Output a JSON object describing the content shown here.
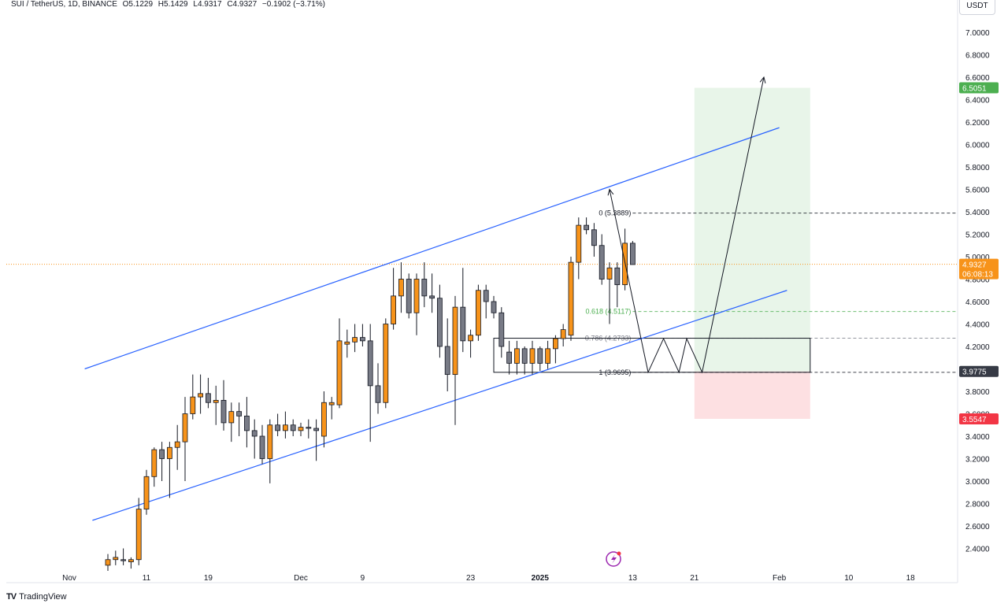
{
  "header": {
    "symbol": "SUI / TetherUS, 1D, BINANCE",
    "open": "O5.1229",
    "high": "H5.1429",
    "low": "L4.9317",
    "close": "C4.9327",
    "change": "−0.1902 (−3.71%)"
  },
  "currency_button": "USDT",
  "brand": "TradingView",
  "colors": {
    "up": "#f7931a",
    "down": "#787b86",
    "channel": "#2962ff",
    "target_zone": "#e8f5e9",
    "stop_zone": "#fde0e2",
    "target_tag": "#4caf50",
    "stop_tag": "#f23645",
    "price_tag": "#f7931a",
    "entry_tag": "#363a45"
  },
  "chart_data": {
    "type": "candlestick",
    "y_axis": {
      "min": 2.3,
      "max": 7.2,
      "ticks": [
        "2.4000",
        "2.6000",
        "2.8000",
        "3.0000",
        "3.2000",
        "3.4000",
        "3.6000",
        "3.8000",
        "4.0000",
        "4.2000",
        "4.4000",
        "4.6000",
        "4.8000",
        "5.0000",
        "5.2000",
        "5.4000",
        "5.6000",
        "5.8000",
        "6.0000",
        "6.2000",
        "6.4000",
        "6.6000",
        "6.8000",
        "7.0000"
      ]
    },
    "x_axis": {
      "ticks": [
        {
          "label": "Nov",
          "day": 0
        },
        {
          "label": "11",
          "day": 10
        },
        {
          "label": "19",
          "day": 18
        },
        {
          "label": "Dec",
          "day": 30
        },
        {
          "label": "9",
          "day": 38
        },
        {
          "label": "23",
          "day": 52
        },
        {
          "label": "2025",
          "day": 61
        },
        {
          "label": "13",
          "day": 73
        },
        {
          "label": "21",
          "day": 81
        },
        {
          "label": "Feb",
          "day": 92
        },
        {
          "label": "10",
          "day": 101
        },
        {
          "label": "18",
          "day": 109
        }
      ]
    },
    "candles": [
      {
        "day": 5,
        "o": 2.25,
        "h": 2.35,
        "l": 2.2,
        "c": 2.3
      },
      {
        "day": 6,
        "o": 2.3,
        "h": 2.38,
        "l": 2.25,
        "c": 2.32
      },
      {
        "day": 7,
        "o": 2.3,
        "h": 2.4,
        "l": 2.25,
        "c": 2.29
      },
      {
        "day": 8,
        "o": 2.28,
        "h": 2.32,
        "l": 2.22,
        "c": 2.3
      },
      {
        "day": 9,
        "o": 2.3,
        "h": 2.85,
        "l": 2.25,
        "c": 2.75
      },
      {
        "day": 10,
        "o": 2.75,
        "h": 3.1,
        "l": 2.7,
        "c": 3.04
      },
      {
        "day": 11,
        "o": 3.04,
        "h": 3.3,
        "l": 2.95,
        "c": 3.28
      },
      {
        "day": 12,
        "o": 3.28,
        "h": 3.35,
        "l": 3.0,
        "c": 3.2
      },
      {
        "day": 13,
        "o": 3.2,
        "h": 3.35,
        "l": 2.85,
        "c": 3.3
      },
      {
        "day": 14,
        "o": 3.3,
        "h": 3.5,
        "l": 3.1,
        "c": 3.35
      },
      {
        "day": 15,
        "o": 3.35,
        "h": 3.75,
        "l": 3.0,
        "c": 3.6
      },
      {
        "day": 16,
        "o": 3.6,
        "h": 3.95,
        "l": 3.55,
        "c": 3.75
      },
      {
        "day": 17,
        "o": 3.75,
        "h": 3.95,
        "l": 3.6,
        "c": 3.78
      },
      {
        "day": 18,
        "o": 3.78,
        "h": 3.92,
        "l": 3.65,
        "c": 3.7
      },
      {
        "day": 19,
        "o": 3.7,
        "h": 3.85,
        "l": 3.5,
        "c": 3.72
      },
      {
        "day": 20,
        "o": 3.72,
        "h": 3.9,
        "l": 3.45,
        "c": 3.52
      },
      {
        "day": 21,
        "o": 3.52,
        "h": 3.7,
        "l": 3.35,
        "c": 3.62
      },
      {
        "day": 22,
        "o": 3.62,
        "h": 3.7,
        "l": 3.4,
        "c": 3.58
      },
      {
        "day": 23,
        "o": 3.58,
        "h": 3.75,
        "l": 3.3,
        "c": 3.45
      },
      {
        "day": 24,
        "o": 3.45,
        "h": 3.55,
        "l": 3.2,
        "c": 3.4
      },
      {
        "day": 25,
        "o": 3.4,
        "h": 3.5,
        "l": 3.15,
        "c": 3.2
      },
      {
        "day": 26,
        "o": 3.2,
        "h": 3.55,
        "l": 2.98,
        "c": 3.5
      },
      {
        "day": 27,
        "o": 3.5,
        "h": 3.6,
        "l": 3.4,
        "c": 3.45
      },
      {
        "day": 28,
        "o": 3.45,
        "h": 3.62,
        "l": 3.38,
        "c": 3.5
      },
      {
        "day": 29,
        "o": 3.5,
        "h": 3.55,
        "l": 3.4,
        "c": 3.45
      },
      {
        "day": 30,
        "o": 3.45,
        "h": 3.52,
        "l": 3.4,
        "c": 3.48
      },
      {
        "day": 31,
        "o": 3.48,
        "h": 3.55,
        "l": 3.38,
        "c": 3.47
      },
      {
        "day": 32,
        "o": 3.47,
        "h": 3.55,
        "l": 3.18,
        "c": 3.45
      },
      {
        "day": 33,
        "o": 3.4,
        "h": 3.8,
        "l": 3.3,
        "c": 3.7
      },
      {
        "day": 34,
        "o": 3.68,
        "h": 3.75,
        "l": 3.55,
        "c": 3.7
      },
      {
        "day": 35,
        "o": 3.68,
        "h": 4.45,
        "l": 3.65,
        "c": 4.25
      },
      {
        "day": 36,
        "o": 4.22,
        "h": 4.35,
        "l": 4.1,
        "c": 4.24
      },
      {
        "day": 37,
        "o": 4.24,
        "h": 4.4,
        "l": 4.15,
        "c": 4.28
      },
      {
        "day": 38,
        "o": 4.28,
        "h": 4.4,
        "l": 4.2,
        "c": 4.25
      },
      {
        "day": 39,
        "o": 4.25,
        "h": 4.4,
        "l": 3.35,
        "c": 3.85
      },
      {
        "day": 40,
        "o": 3.85,
        "h": 4.05,
        "l": 3.6,
        "c": 3.7
      },
      {
        "day": 41,
        "o": 3.7,
        "h": 4.45,
        "l": 3.65,
        "c": 4.4
      },
      {
        "day": 42,
        "o": 4.4,
        "h": 4.9,
        "l": 4.35,
        "c": 4.65
      },
      {
        "day": 43,
        "o": 4.65,
        "h": 4.95,
        "l": 4.5,
        "c": 4.8
      },
      {
        "day": 44,
        "o": 4.8,
        "h": 4.85,
        "l": 4.45,
        "c": 4.5
      },
      {
        "day": 45,
        "o": 4.5,
        "h": 4.85,
        "l": 4.3,
        "c": 4.8
      },
      {
        "day": 46,
        "o": 4.8,
        "h": 4.95,
        "l": 4.55,
        "c": 4.65
      },
      {
        "day": 47,
        "o": 4.65,
        "h": 4.85,
        "l": 4.5,
        "c": 4.63
      },
      {
        "day": 48,
        "o": 4.63,
        "h": 4.75,
        "l": 4.1,
        "c": 4.2
      },
      {
        "day": 49,
        "o": 4.2,
        "h": 4.45,
        "l": 3.8,
        "c": 3.95
      },
      {
        "day": 50,
        "o": 3.95,
        "h": 4.65,
        "l": 3.5,
        "c": 4.55
      },
      {
        "day": 51,
        "o": 4.55,
        "h": 4.9,
        "l": 4.15,
        "c": 4.25
      },
      {
        "day": 52,
        "o": 4.25,
        "h": 4.35,
        "l": 4.1,
        "c": 4.3
      },
      {
        "day": 53,
        "o": 4.3,
        "h": 4.75,
        "l": 4.25,
        "c": 4.7
      },
      {
        "day": 54,
        "o": 4.7,
        "h": 4.75,
        "l": 4.45,
        "c": 4.6
      },
      {
        "day": 55,
        "o": 4.6,
        "h": 4.65,
        "l": 4.45,
        "c": 4.5
      },
      {
        "day": 56,
        "o": 4.5,
        "h": 4.55,
        "l": 4.1,
        "c": 4.2
      },
      {
        "day": 57,
        "o": 4.15,
        "h": 4.25,
        "l": 3.95,
        "c": 4.05
      },
      {
        "day": 58,
        "o": 4.05,
        "h": 4.25,
        "l": 3.95,
        "c": 4.18
      },
      {
        "day": 59,
        "o": 4.18,
        "h": 4.2,
        "l": 3.95,
        "c": 4.05
      },
      {
        "day": 60,
        "o": 4.05,
        "h": 4.25,
        "l": 3.95,
        "c": 4.18
      },
      {
        "day": 61,
        "o": 4.18,
        "h": 4.2,
        "l": 3.98,
        "c": 4.05
      },
      {
        "day": 62,
        "o": 4.05,
        "h": 4.25,
        "l": 4.0,
        "c": 4.18
      },
      {
        "day": 63,
        "o": 4.18,
        "h": 4.3,
        "l": 4.05,
        "c": 4.27
      },
      {
        "day": 64,
        "o": 4.27,
        "h": 4.4,
        "l": 4.2,
        "c": 4.35
      },
      {
        "day": 65,
        "o": 4.3,
        "h": 5.0,
        "l": 4.25,
        "c": 4.95
      },
      {
        "day": 66,
        "o": 4.95,
        "h": 5.35,
        "l": 4.8,
        "c": 5.28
      },
      {
        "day": 67,
        "o": 5.28,
        "h": 5.35,
        "l": 5.2,
        "c": 5.24
      },
      {
        "day": 68,
        "o": 5.24,
        "h": 5.3,
        "l": 5.0,
        "c": 5.1
      },
      {
        "day": 69,
        "o": 5.1,
        "h": 5.2,
        "l": 4.75,
        "c": 4.8
      },
      {
        "day": 70,
        "o": 4.8,
        "h": 4.95,
        "l": 4.4,
        "c": 4.9
      },
      {
        "day": 71,
        "o": 4.9,
        "h": 4.95,
        "l": 4.55,
        "c": 4.75
      },
      {
        "day": 72,
        "o": 4.75,
        "h": 5.25,
        "l": 4.7,
        "c": 5.12
      },
      {
        "day": 73,
        "o": 5.12,
        "h": 5.14,
        "l": 4.93,
        "c": 4.93
      }
    ],
    "channel_lines": [
      {
        "name": "",
        "points": [
          [
            2,
            4.0
          ],
          [
            92,
            6.15
          ]
        ]
      },
      {
        "name": "",
        "points": [
          [
            3,
            2.65
          ],
          [
            93,
            4.7
          ]
        ]
      }
    ],
    "fibonacci": [
      {
        "label": "0 (5.3889)",
        "value": 5.3889,
        "color": "#131722"
      },
      {
        "label": "0.618 (4.5117)",
        "value": 4.5117,
        "color": "#4caf50"
      },
      {
        "label": "0.786 (4.2733)",
        "value": 4.2733,
        "color": "#787b86"
      },
      {
        "label": "1 (3.9695)",
        "value": 3.9695,
        "color": "#131722"
      }
    ],
    "projection_path": [
      [
        70,
        5.6
      ],
      [
        75,
        3.97
      ],
      [
        77,
        4.27
      ],
      [
        79,
        3.97
      ],
      [
        80,
        4.27
      ],
      [
        82,
        3.97
      ],
      [
        90,
        6.6
      ]
    ],
    "position": {
      "from_day": 81,
      "to_day": 96,
      "entry": 3.9775,
      "target": 6.5051,
      "stop": 3.5547
    },
    "last_price": 4.9327,
    "countdown": "06:08:13",
    "price_tags": {
      "target": "6.5051",
      "last": "4.9327",
      "entry": "3.9775",
      "stop": "3.5547"
    }
  }
}
